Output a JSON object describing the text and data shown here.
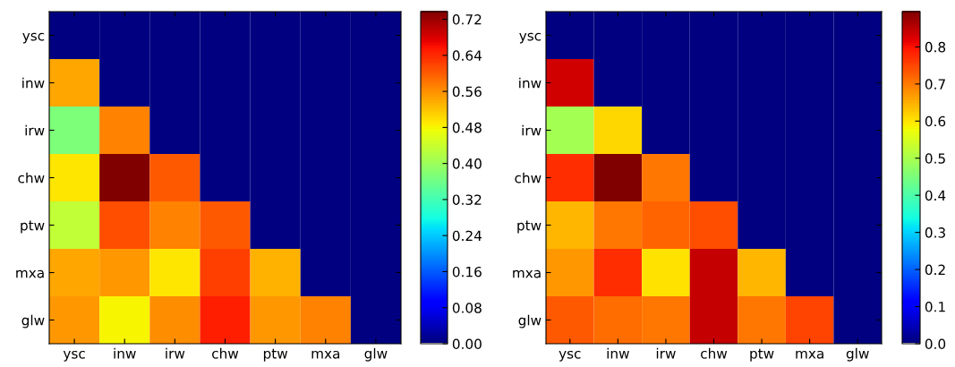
{
  "chart_data": [
    {
      "type": "heatmap",
      "categories": [
        "ysc",
        "inw",
        "irw",
        "chw",
        "ptw",
        "mxa",
        "glw"
      ],
      "y_categories": [
        "ysc",
        "inw",
        "irw",
        "chw",
        "ptw",
        "mxa",
        "glw"
      ],
      "cells": [
        [
          0,
          0,
          0,
          0,
          0,
          0,
          0
        ],
        [
          0.54,
          0,
          0,
          0,
          0,
          0,
          0
        ],
        [
          0.37,
          0.57,
          0,
          0,
          0,
          0,
          0
        ],
        [
          0.49,
          0.737,
          0.6,
          0,
          0,
          0,
          0
        ],
        [
          0.43,
          0.61,
          0.57,
          0.6,
          0,
          0,
          0
        ],
        [
          0.54,
          0.55,
          0.49,
          0.62,
          0.53,
          0,
          0
        ],
        [
          0.55,
          0.48,
          0.56,
          0.645,
          0.55,
          0.57,
          0
        ]
      ],
      "clim": [
        0,
        0.737
      ],
      "cticks": [
        {
          "value": 0,
          "label": "0.00"
        },
        {
          "value": 0.08,
          "label": "0.08"
        },
        {
          "value": 0.16,
          "label": "0.16"
        },
        {
          "value": 0.24,
          "label": "0.24"
        },
        {
          "value": 0.32,
          "label": "0.32"
        },
        {
          "value": 0.4,
          "label": "0.40"
        },
        {
          "value": 0.48,
          "label": "0.48"
        },
        {
          "value": 0.56,
          "label": "0.56"
        },
        {
          "value": 0.64,
          "label": "0.64"
        },
        {
          "value": 0.72,
          "label": "0.72"
        }
      ]
    },
    {
      "type": "heatmap",
      "categories": [
        "ysc",
        "inw",
        "irw",
        "chw",
        "ptw",
        "mxa",
        "glw"
      ],
      "y_categories": [
        "ysc",
        "inw",
        "irw",
        "chw",
        "ptw",
        "mxa",
        "glw"
      ],
      "cells": [
        [
          0,
          0,
          0,
          0,
          0,
          0,
          0
        ],
        [
          0.83,
          0,
          0,
          0,
          0,
          0,
          0
        ],
        [
          0.49,
          0.61,
          0,
          0,
          0,
          0,
          0
        ],
        [
          0.77,
          0.895,
          0.7,
          0,
          0,
          0,
          0
        ],
        [
          0.64,
          0.7,
          0.72,
          0.74,
          0,
          0,
          0
        ],
        [
          0.67,
          0.77,
          0.6,
          0.84,
          0.64,
          0,
          0
        ],
        [
          0.73,
          0.71,
          0.7,
          0.84,
          0.7,
          0.75,
          0
        ]
      ],
      "clim": [
        0,
        0.895
      ],
      "cticks": [
        {
          "value": 0,
          "label": "0.0"
        },
        {
          "value": 0.1,
          "label": "0.1"
        },
        {
          "value": 0.2,
          "label": "0.2"
        },
        {
          "value": 0.3,
          "label": "0.3"
        },
        {
          "value": 0.4,
          "label": "0.4"
        },
        {
          "value": 0.5,
          "label": "0.5"
        },
        {
          "value": 0.6,
          "label": "0.6"
        },
        {
          "value": 0.7,
          "label": "0.7"
        },
        {
          "value": 0.8,
          "label": "0.8"
        }
      ]
    }
  ]
}
